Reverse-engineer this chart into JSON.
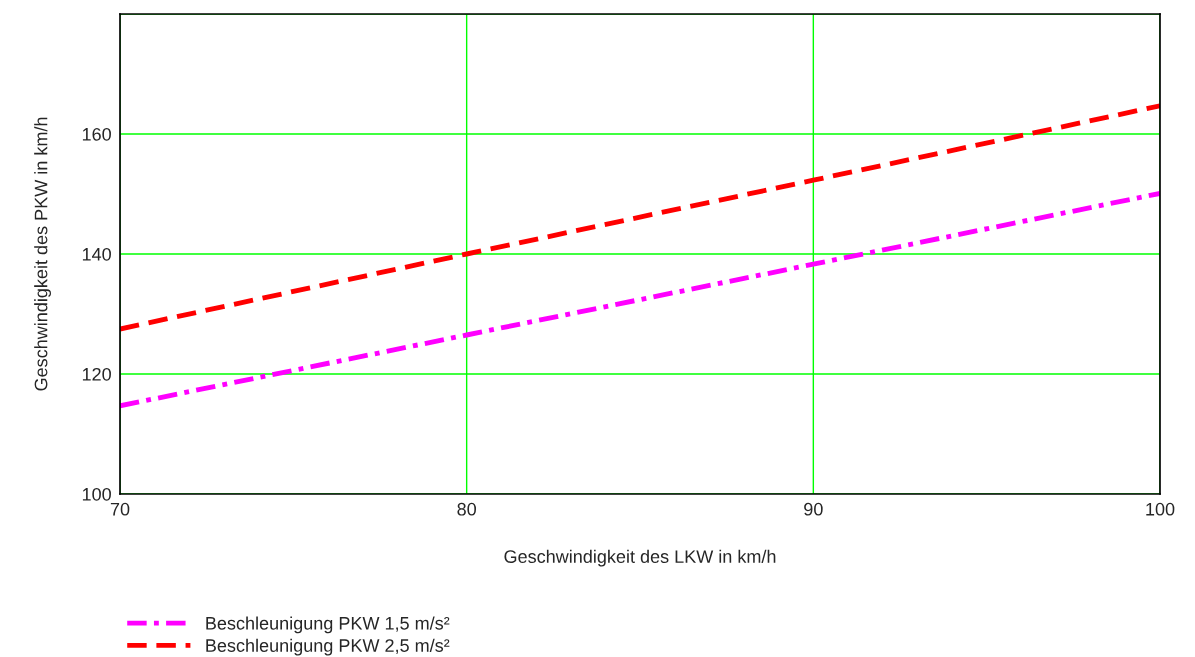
{
  "chart_data": {
    "type": "line",
    "xlabel": "Geschwindigkeit des LKW in km/h",
    "ylabel": "Geschwindigkeit des PKW in km/h",
    "x": [
      70,
      80,
      90,
      100
    ],
    "series": [
      {
        "name": "Beschleunigung PKW 1,5 m/s²",
        "color": "#ff00ff",
        "line_style": "dashdot",
        "values": [
          114.7,
          126.5,
          138.3,
          150.1
        ]
      },
      {
        "name": "Beschleunigung PKW 2,5 m/s²",
        "color": "#ff0000",
        "line_style": "dashed",
        "values": [
          127.5,
          140,
          152.3,
          164.7
        ]
      }
    ],
    "xlim": [
      70,
      100
    ],
    "xticks": [
      70,
      80,
      90,
      100
    ],
    "ylim": [
      100,
      180
    ],
    "yticks": [
      100,
      120,
      140,
      160,
      {
        "value": 180,
        "label": null
      }
    ],
    "grid": true,
    "legend": "bottom left",
    "marker": "none"
  }
}
